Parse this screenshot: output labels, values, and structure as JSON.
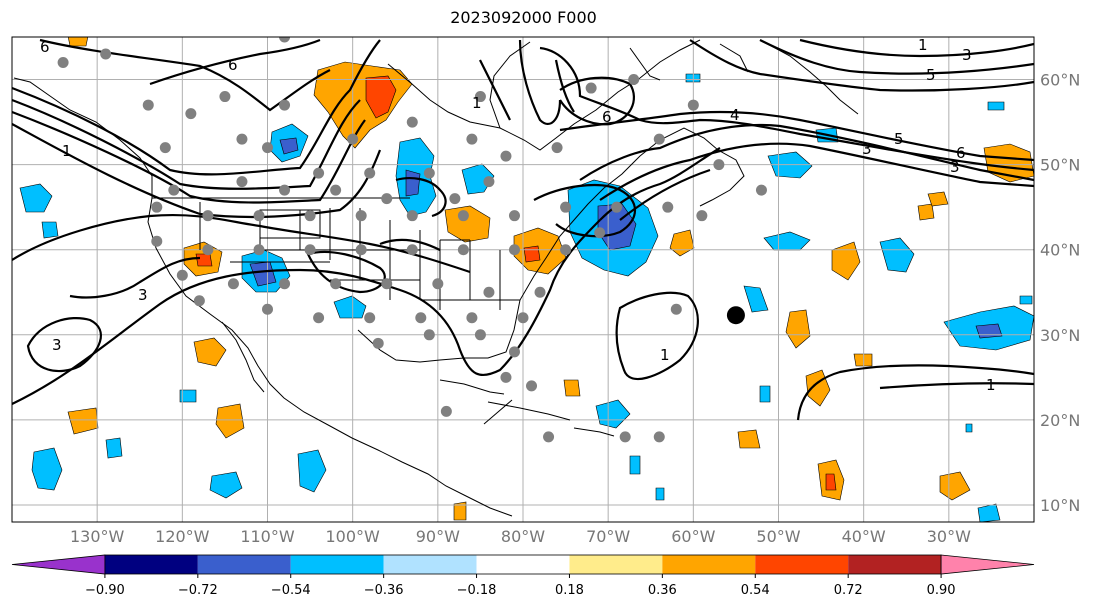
{
  "title": "2023092000 F000",
  "map": {
    "lon_range": [
      -140,
      -20
    ],
    "lat_range": [
      8,
      65
    ],
    "lat_ticks": [
      10,
      20,
      30,
      40,
      50,
      60
    ],
    "lon_ticks": [
      -130,
      -120,
      -110,
      -100,
      -90,
      -80,
      -70,
      -60,
      -50,
      -40,
      -30
    ],
    "lat_labels": [
      "10°N",
      "20°N",
      "30°N",
      "40°N",
      "50°N",
      "60°N"
    ],
    "lon_labels": [
      "130°W",
      "120°W",
      "110°W",
      "100°W",
      "90°W",
      "80°W",
      "70°W",
      "60°W",
      "50°W",
      "40°W",
      "30°W"
    ],
    "grid": true,
    "marker": {
      "lon": -55,
      "lat": 32.3,
      "color": "#000000"
    },
    "station_color": "#808080",
    "contour_labels": [
      "6",
      "6",
      "1",
      "6",
      "4",
      "1",
      "3",
      "5",
      "3",
      "3",
      "5",
      "6",
      "1",
      "3",
      "3",
      "1",
      "1"
    ]
  },
  "colorbar": {
    "ticks": [
      "−0.90",
      "−0.72",
      "−0.54",
      "−0.36",
      "−0.18",
      "0.18",
      "0.36",
      "0.54",
      "0.72",
      "0.90"
    ],
    "colors": [
      "#9932cc",
      "#000080",
      "#3a5fcd",
      "#00bfff",
      "#b0e2ff",
      "#ffffff",
      "#ffec8b",
      "#ffa500",
      "#ff4500",
      "#b22222",
      "#ff82ab"
    ]
  }
}
